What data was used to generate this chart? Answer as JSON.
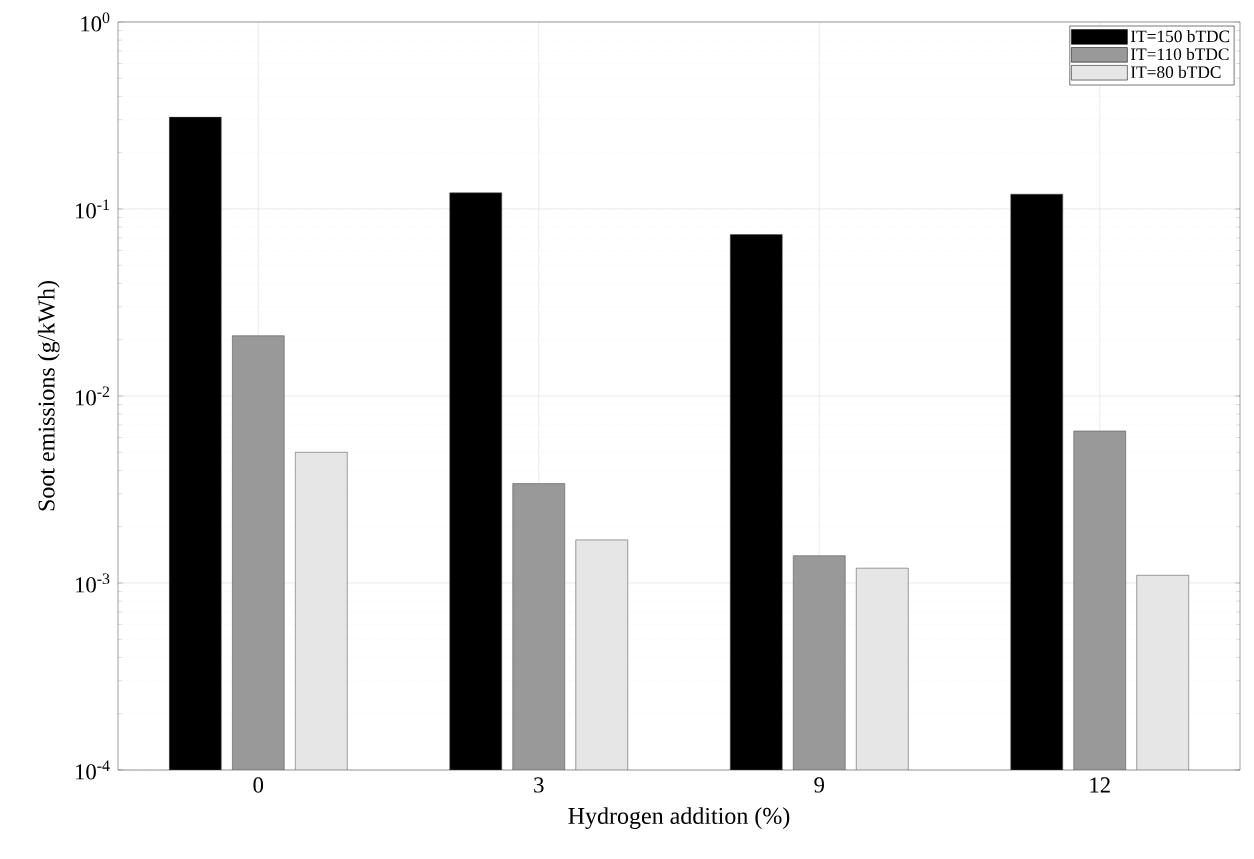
{
  "chart_data": {
    "type": "bar",
    "xlabel": "Hydrogen addition (%)",
    "ylabel": "Soot emissions (g/kWh)",
    "categories": [
      "0",
      "3",
      "9",
      "12"
    ],
    "series": [
      {
        "name": "IT=150 bTDC",
        "color": "#000000",
        "values": [
          0.31,
          0.122,
          0.073,
          0.12
        ]
      },
      {
        "name": "IT=110 bTDC",
        "color": "#999999",
        "values": [
          0.021,
          0.0034,
          0.0014,
          0.0065
        ]
      },
      {
        "name": "IT=80 bTDC",
        "color": "#e6e6e6",
        "values": [
          0.005,
          0.0017,
          0.0012,
          0.0011
        ]
      }
    ],
    "log": "y",
    "ylim": [
      0.0001,
      1
    ],
    "yticks": [
      {
        "value": 0.0001,
        "label": "10$^{-4}$"
      },
      {
        "value": 0.001,
        "label": "10$^{-3}$"
      },
      {
        "value": 0.01,
        "label": "10$^{-2}$"
      },
      {
        "value": 0.1,
        "label": "10$^{-1}$"
      },
      {
        "value": 1,
        "label": "10$^{0}$"
      }
    ],
    "grid": true,
    "legend": "top right"
  }
}
